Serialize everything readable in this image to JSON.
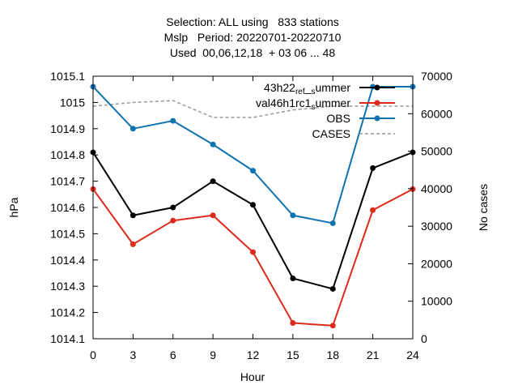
{
  "chart_data": {
    "type": "line",
    "title_lines": [
      "Selection: ALL using   833 stations",
      "Mslp   Period: 20220701-20220710",
      "Used  00,06,12,18  + 03 06 ... 48"
    ],
    "xlabel": "Hour",
    "ylabel": "hPa",
    "y2label": "No cases",
    "x": [
      0,
      3,
      6,
      9,
      12,
      15,
      18,
      21,
      24
    ],
    "xlim": [
      0,
      24
    ],
    "ylim": [
      1014.1,
      1015.1
    ],
    "y2lim": [
      0,
      70000
    ],
    "xticks": [
      "0",
      "3",
      "6",
      "9",
      "12",
      "15",
      "18",
      "21",
      "24"
    ],
    "yticks": [
      "1014.1",
      "1014.2",
      "1014.3",
      "1014.4",
      "1014.5",
      "1014.6",
      "1014.7",
      "1014.8",
      "1014.9",
      "1015",
      "1015.1"
    ],
    "y2ticks": [
      "0",
      "10000",
      "20000",
      "30000",
      "40000",
      "50000",
      "60000",
      "70000"
    ],
    "grid": false,
    "legend_position": "top-right",
    "series": [
      {
        "name": "43h22_ref_summer",
        "label_parts": [
          [
            "43h22",
            "n"
          ],
          [
            "ref",
            "sub"
          ],
          [
            "_",
            "n"
          ],
          [
            "s",
            "sub"
          ],
          [
            "ummer",
            "n"
          ]
        ],
        "color": "#000000",
        "axis": "y",
        "values": [
          1014.81,
          1014.57,
          1014.6,
          1014.7,
          1014.61,
          1014.33,
          1014.29,
          1014.75,
          1014.81
        ]
      },
      {
        "name": "val46h1rc1_summer",
        "label_parts": [
          [
            "val46h1rc1",
            "n"
          ],
          [
            "s",
            "sub"
          ],
          [
            "ummer",
            "n"
          ]
        ],
        "color": "#dd2a1b",
        "axis": "y",
        "values": [
          1014.67,
          1014.46,
          1014.55,
          1014.57,
          1014.43,
          1014.16,
          1014.15,
          1014.59,
          1014.67
        ]
      },
      {
        "name": "OBS",
        "label_parts": [
          [
            "OBS",
            "n"
          ]
        ],
        "color": "#0f72b0",
        "axis": "y",
        "values": [
          1015.06,
          1014.9,
          1014.93,
          1014.84,
          1014.74,
          1014.57,
          1014.54,
          1015.06,
          1015.06
        ]
      },
      {
        "name": "CASES",
        "label_parts": [
          [
            "CASES",
            "n"
          ]
        ],
        "color": "#999999",
        "axis": "y2",
        "dashed": true,
        "values": [
          62000,
          63000,
          63500,
          59000,
          59000,
          61000,
          62000,
          62000,
          62000
        ]
      }
    ]
  }
}
